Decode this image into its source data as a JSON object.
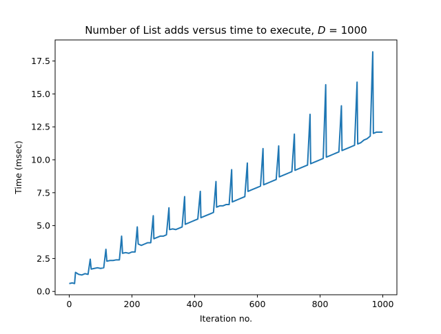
{
  "chart_data": {
    "type": "line",
    "title": {
      "prefix": "Number of List adds versus time to execute, ",
      "variable": "D",
      "suffix": " = 1000"
    },
    "xlabel": "Iteration no.",
    "ylabel": "Time (msec)",
    "xlim": [
      -45,
      1045
    ],
    "ylim": [
      -0.25,
      19.1
    ],
    "xticks": [
      0,
      200,
      400,
      600,
      800,
      1000
    ],
    "xtick_labels": [
      "0",
      "200",
      "400",
      "600",
      "800",
      "1000"
    ],
    "yticks": [
      0.0,
      2.5,
      5.0,
      7.5,
      10.0,
      12.5,
      15.0,
      17.5
    ],
    "ytick_labels": [
      "0.0",
      "2.5",
      "5.0",
      "7.5",
      "10.0",
      "12.5",
      "15.0",
      "17.5"
    ],
    "grid": false,
    "series_color": "#1f77b4",
    "series": [
      {
        "x": [
          0,
          10,
          17,
          20,
          30,
          40,
          50,
          60,
          67,
          70,
          80,
          90,
          100,
          110,
          117,
          120,
          130,
          140,
          150,
          160,
          167,
          170,
          180,
          190,
          200,
          210,
          217,
          220,
          230,
          240,
          250,
          260,
          268,
          270,
          280,
          290,
          300,
          310,
          318,
          320,
          330,
          340,
          350,
          360,
          368,
          370,
          380,
          390,
          400,
          410,
          418,
          420,
          430,
          440,
          450,
          460,
          468,
          470,
          480,
          490,
          500,
          510,
          518,
          520,
          530,
          540,
          550,
          560,
          568,
          570,
          580,
          590,
          600,
          610,
          618,
          620,
          630,
          640,
          650,
          660,
          668,
          670,
          680,
          690,
          700,
          710,
          718,
          720,
          730,
          740,
          750,
          760,
          768,
          770,
          780,
          790,
          800,
          810,
          818,
          820,
          830,
          840,
          850,
          860,
          868,
          870,
          880,
          890,
          900,
          910,
          918,
          920,
          930,
          940,
          950,
          960,
          968,
          970,
          980,
          990,
          999
        ],
        "y": [
          0.6,
          0.65,
          0.6,
          1.45,
          1.3,
          1.25,
          1.35,
          1.3,
          2.45,
          1.7,
          1.75,
          1.8,
          1.75,
          1.8,
          3.2,
          2.3,
          2.35,
          2.35,
          2.4,
          2.4,
          4.2,
          2.9,
          2.95,
          2.9,
          3.0,
          3.0,
          4.9,
          3.6,
          3.5,
          3.6,
          3.7,
          3.7,
          5.75,
          4.0,
          4.1,
          4.2,
          4.2,
          4.3,
          6.35,
          4.7,
          4.75,
          4.7,
          4.8,
          4.9,
          7.2,
          5.1,
          5.2,
          5.3,
          5.4,
          5.5,
          7.6,
          5.6,
          5.7,
          5.8,
          5.9,
          6.0,
          8.35,
          6.4,
          6.5,
          6.5,
          6.6,
          6.6,
          9.25,
          6.8,
          6.9,
          7.0,
          7.1,
          7.2,
          9.75,
          7.6,
          7.7,
          7.8,
          7.9,
          8.0,
          10.85,
          8.1,
          8.2,
          8.3,
          8.4,
          8.5,
          11.05,
          8.7,
          8.8,
          8.9,
          9.0,
          9.1,
          11.95,
          9.2,
          9.3,
          9.4,
          9.5,
          9.6,
          13.45,
          9.7,
          9.8,
          9.9,
          10.0,
          10.1,
          15.7,
          10.2,
          10.3,
          10.4,
          10.5,
          10.6,
          14.1,
          10.7,
          10.8,
          10.9,
          11.0,
          11.1,
          15.9,
          11.2,
          11.3,
          11.5,
          11.6,
          11.8,
          18.2,
          12.0,
          12.1,
          12.1,
          12.1
        ]
      }
    ]
  }
}
